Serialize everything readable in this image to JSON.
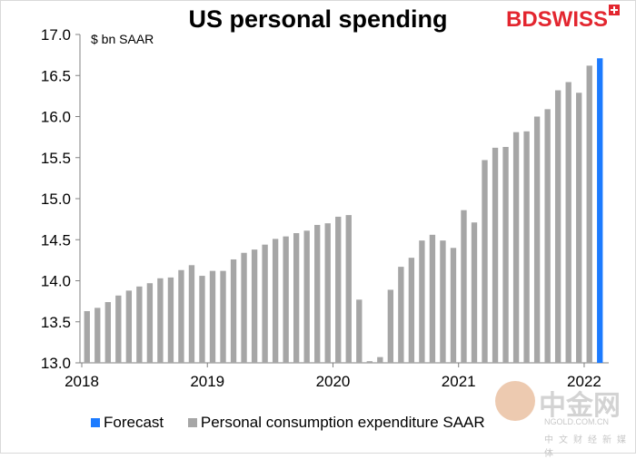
{
  "chart_data": {
    "type": "bar",
    "title": "US personal spending",
    "unit_label": "$ bn SAAR",
    "ylim": [
      13.0,
      17.0
    ],
    "yticks": [
      "13.0",
      "13.5",
      "14.0",
      "14.5",
      "15.0",
      "15.5",
      "16.0",
      "16.5",
      "17.0"
    ],
    "xticks": [
      "2018",
      "2019",
      "2020",
      "2021",
      "2022"
    ],
    "grid": false,
    "legend_position": "bottom",
    "x_start": "2018-01",
    "series": [
      {
        "name": "Personal consumption expenditure  SAAR",
        "color": "#a6a6a6",
        "values": [
          13.63,
          13.67,
          13.74,
          13.82,
          13.88,
          13.93,
          13.97,
          14.03,
          14.04,
          14.13,
          14.19,
          14.06,
          14.12,
          14.12,
          14.26,
          14.34,
          14.38,
          14.44,
          14.51,
          14.54,
          14.58,
          14.61,
          14.68,
          14.7,
          14.78,
          14.8,
          13.77,
          13.02,
          13.07,
          13.89,
          14.17,
          14.28,
          14.49,
          14.56,
          14.49,
          14.4,
          14.86,
          14.71,
          15.47,
          15.62,
          15.63,
          15.81,
          15.82,
          16.0,
          16.09,
          16.32,
          16.42,
          16.29,
          16.62
        ]
      },
      {
        "name": "Forecast",
        "color": "#1c7bff",
        "values": [
          16.71
        ]
      }
    ]
  },
  "legend": {
    "forecast": "Forecast",
    "pce": "Personal consumption expenditure  SAAR"
  },
  "logo": {
    "bd": "BD",
    "swiss": "SWISS"
  },
  "watermark": {
    "name": "中金网",
    "site": "NGOLD.COM.CN",
    "tagline": "中文财经新媒体"
  }
}
